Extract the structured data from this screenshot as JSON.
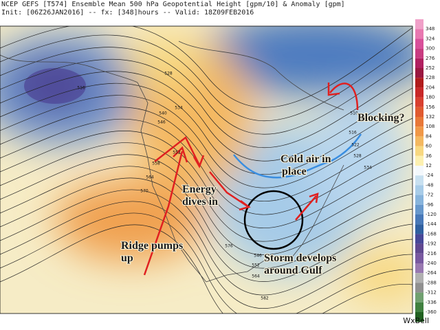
{
  "header": {
    "line1": "NCEP GEFS [T574] Ensemble Mean 500 hPa Geopotential Height [gpm/10] & Anomaly [gpm]",
    "line2": "Init: [06Z26JAN2016] -- fx: [348]hours -- Valid: 18Z09FEB2016"
  },
  "annotations": [
    {
      "lines": [
        "Blocking?"
      ]
    },
    {
      "lines": [
        "Cold air in",
        "place"
      ]
    },
    {
      "lines": [
        "Energy",
        "dives in"
      ]
    },
    {
      "lines": [
        "Ridge pumps",
        "up"
      ]
    },
    {
      "lines": [
        "Storm develops",
        "around Gulf"
      ]
    }
  ],
  "colorbar": {
    "labels": [
      "348",
      "324",
      "300",
      "276",
      "252",
      "228",
      "204",
      "180",
      "156",
      "132",
      "108",
      "84",
      "60",
      "36",
      "12",
      "-24",
      "-48",
      "-72",
      "-96",
      "-120",
      "-144",
      "-168",
      "-192",
      "-216",
      "-240",
      "-264",
      "-288",
      "-312",
      "-336",
      "-360"
    ]
  },
  "contour_labels": [
    "516",
    "528",
    "534",
    "540",
    "546",
    "552",
    "558",
    "564",
    "570",
    "510",
    "516",
    "522",
    "528",
    "534",
    "546",
    "552",
    "564",
    "576",
    "582"
  ],
  "logo": "WxBell"
}
